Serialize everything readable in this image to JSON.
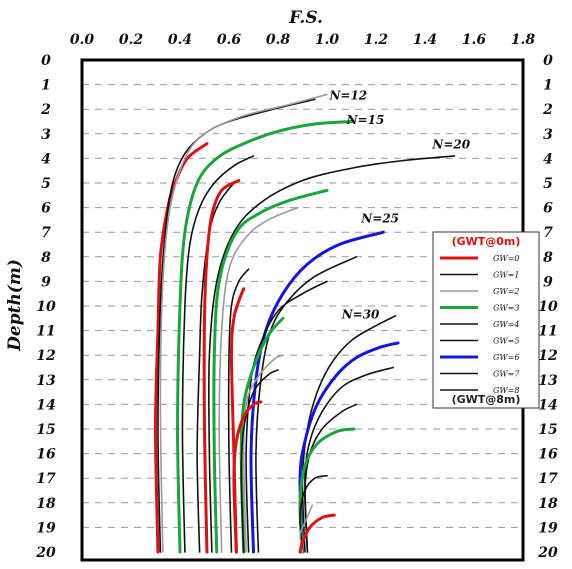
{
  "chart_data": {
    "type": "line",
    "title": "F.S.",
    "ylabel": "Depth(m)",
    "xlim": [
      0,
      1.8
    ],
    "ylim": [
      20,
      0
    ],
    "x_ticks": [
      "0.0",
      "0.2",
      "0.4",
      "0.6",
      "0.8",
      "1.0",
      "1.2",
      "1.4",
      "1.6",
      "1.8"
    ],
    "y_ticks": [
      "0",
      "1",
      "2",
      "3",
      "4",
      "5",
      "6",
      "7",
      "8",
      "9",
      "10",
      "11",
      "12",
      "13",
      "14",
      "15",
      "16",
      "17",
      "18",
      "19",
      "20"
    ],
    "grid": "horizontal dashed",
    "legend": {
      "placement": "right",
      "top_note": "(GWT@0m)",
      "bottom_note": "(GWT@8m)",
      "entries": [
        {
          "label": "GW=0",
          "color": "#e01010"
        },
        {
          "label": "GW=1",
          "color": "#111111"
        },
        {
          "label": "GW=2",
          "color": "#9a9a9a"
        },
        {
          "label": "GW=3",
          "color": "#1aa53a"
        },
        {
          "label": "GW=4",
          "color": "#111111"
        },
        {
          "label": "GW=5",
          "color": "#111111"
        },
        {
          "label": "GW=6",
          "color": "#1515e0"
        },
        {
          "label": "GW=7",
          "color": "#111111"
        },
        {
          "label": "GW=8",
          "color": "#111111"
        }
      ]
    },
    "groups": [
      {
        "label": "N=12",
        "label_at": [
          1.01,
          1.6
        ],
        "series": [
          {
            "gw": "GW=0",
            "color": "#e01010",
            "points": [
              [
                0.31,
                20
              ],
              [
                0.3,
                15
              ],
              [
                0.31,
                11
              ],
              [
                0.32,
                8
              ],
              [
                0.35,
                6
              ],
              [
                0.38,
                5
              ],
              [
                0.43,
                4
              ],
              [
                0.51,
                3.4
              ]
            ]
          },
          {
            "gw": "GW=1",
            "color": "#111111",
            "points": [
              [
                0.32,
                20
              ],
              [
                0.31,
                15
              ],
              [
                0.32,
                10
              ],
              [
                0.34,
                7
              ],
              [
                0.37,
                5
              ],
              [
                0.42,
                3.8
              ],
              [
                0.5,
                3
              ],
              [
                0.6,
                2.5
              ],
              [
                0.78,
                2.0
              ],
              [
                0.95,
                1.6
              ]
            ]
          },
          {
            "gw": "GW=2",
            "color": "#9a9a9a",
            "points": [
              [
                0.33,
                20
              ],
              [
                0.32,
                14
              ],
              [
                0.33,
                9
              ],
              [
                0.36,
                6
              ],
              [
                0.42,
                4
              ],
              [
                0.5,
                3
              ],
              [
                0.65,
                2.3
              ],
              [
                0.85,
                1.8
              ],
              [
                1.0,
                1.4
              ]
            ]
          }
        ]
      },
      {
        "label": "N=15",
        "label_at": [
          1.08,
          2.6
        ],
        "series": [
          {
            "gw": "GW=3",
            "color": "#1aa53a",
            "points": [
              [
                0.4,
                20
              ],
              [
                0.39,
                15
              ],
              [
                0.4,
                10
              ],
              [
                0.42,
                7
              ],
              [
                0.47,
                5
              ],
              [
                0.55,
                4
              ],
              [
                0.66,
                3.4
              ],
              [
                0.8,
                2.9
              ],
              [
                0.95,
                2.6
              ],
              [
                1.1,
                2.5
              ]
            ]
          },
          {
            "gw": "GW=4",
            "color": "#111111",
            "points": [
              [
                0.42,
                20
              ],
              [
                0.41,
                15
              ],
              [
                0.42,
                10
              ],
              [
                0.44,
                7.5
              ],
              [
                0.48,
                6
              ],
              [
                0.54,
                5
              ],
              [
                0.62,
                4.3
              ],
              [
                0.7,
                3.9
              ]
            ]
          },
          {
            "gw": "GW=5",
            "color": "#111111",
            "points": [
              [
                0.48,
                20
              ],
              [
                0.47,
                16
              ],
              [
                0.48,
                12
              ],
              [
                0.49,
                9.5
              ],
              [
                0.52,
                7
              ],
              [
                0.56,
                5.8
              ],
              [
                0.62,
                5.0
              ]
            ]
          },
          {
            "gw": "GW=0",
            "color": "#e01010",
            "points": [
              [
                0.51,
                20
              ],
              [
                0.5,
                15
              ],
              [
                0.5,
                10.5
              ],
              [
                0.51,
                8
              ],
              [
                0.53,
                6.3
              ],
              [
                0.57,
                5.3
              ],
              [
                0.64,
                4.9
              ]
            ]
          }
        ]
      },
      {
        "label": "N=20",
        "label_at": [
          1.43,
          3.6
        ],
        "series": [
          {
            "gw": "GW=1",
            "color": "#111111",
            "points": [
              [
                0.53,
                20
              ],
              [
                0.52,
                16
              ],
              [
                0.52,
                12
              ],
              [
                0.55,
                9
              ],
              [
                0.62,
                7
              ],
              [
                0.73,
                5.8
              ],
              [
                0.9,
                4.9
              ],
              [
                1.1,
                4.4
              ],
              [
                1.3,
                4.1
              ],
              [
                1.52,
                3.9
              ]
            ]
          },
          {
            "gw": "GW=3",
            "color": "#1aa53a",
            "points": [
              [
                0.55,
                20
              ],
              [
                0.54,
                16
              ],
              [
                0.54,
                12
              ],
              [
                0.56,
                9
              ],
              [
                0.63,
                7
              ],
              [
                0.73,
                6.2
              ],
              [
                0.85,
                5.7
              ],
              [
                1.0,
                5.3
              ]
            ]
          },
          {
            "gw": "GW=2",
            "color": "#9a9a9a",
            "points": [
              [
                0.57,
                20
              ],
              [
                0.56,
                15
              ],
              [
                0.57,
                11
              ],
              [
                0.6,
                8.5
              ],
              [
                0.67,
                7.2
              ],
              [
                0.76,
                6.5
              ],
              [
                0.88,
                6.0
              ]
            ]
          },
          {
            "gw": "GW=4",
            "color": "#111111",
            "points": [
              [
                0.61,
                20
              ],
              [
                0.6,
                16
              ],
              [
                0.6,
                12
              ],
              [
                0.61,
                10
              ],
              [
                0.64,
                9
              ],
              [
                0.68,
                8.5
              ]
            ]
          },
          {
            "gw": "GW=0",
            "color": "#e01010",
            "points": [
              [
                0.63,
                20
              ],
              [
                0.62,
                16
              ],
              [
                0.61,
                12
              ],
              [
                0.62,
                10.5
              ],
              [
                0.64,
                9.8
              ],
              [
                0.66,
                9.3
              ]
            ]
          }
        ]
      },
      {
        "label": "N=25",
        "label_at": [
          1.14,
          6.6
        ],
        "series": [
          {
            "gw": "GW=6",
            "color": "#1515e0",
            "points": [
              [
                0.7,
                20
              ],
              [
                0.69,
                16
              ],
              [
                0.71,
                13
              ],
              [
                0.75,
                11
              ],
              [
                0.82,
                9.5
              ],
              [
                0.92,
                8.3
              ],
              [
                1.05,
                7.5
              ],
              [
                1.23,
                7.0
              ]
            ]
          },
          {
            "gw": "GW=5",
            "color": "#111111",
            "points": [
              [
                0.72,
                20
              ],
              [
                0.71,
                16
              ],
              [
                0.73,
                13
              ],
              [
                0.77,
                11
              ],
              [
                0.84,
                9.8
              ],
              [
                0.95,
                8.8
              ],
              [
                1.12,
                8.0
              ]
            ]
          },
          {
            "gw": "GW=7",
            "color": "#111111",
            "points": [
              [
                0.68,
                20
              ],
              [
                0.67,
                16
              ],
              [
                0.69,
                13
              ],
              [
                0.73,
                11.5
              ],
              [
                0.8,
                10.2
              ],
              [
                0.9,
                9.5
              ],
              [
                1.0,
                9.0
              ]
            ]
          },
          {
            "gw": "GW=3",
            "color": "#1aa53a",
            "points": [
              [
                0.66,
                20
              ],
              [
                0.65,
                16
              ],
              [
                0.66,
                14
              ],
              [
                0.7,
                12.5
              ],
              [
                0.76,
                11.2
              ],
              [
                0.82,
                10.5
              ]
            ]
          },
          {
            "gw": "GW=2",
            "color": "#9a9a9a",
            "points": [
              [
                0.67,
                20
              ],
              [
                0.66,
                16
              ],
              [
                0.67,
                14
              ],
              [
                0.71,
                13
              ],
              [
                0.78,
                12.2
              ],
              [
                0.82,
                12.0
              ]
            ]
          },
          {
            "gw": "GW=8",
            "color": "#111111",
            "points": [
              [
                0.66,
                20
              ],
              [
                0.65,
                17
              ],
              [
                0.66,
                15
              ],
              [
                0.7,
                13.5
              ],
              [
                0.76,
                12.8
              ],
              [
                0.8,
                12.6
              ]
            ]
          },
          {
            "gw": "GW=0",
            "color": "#e01010",
            "points": [
              [
                0.63,
                20
              ],
              [
                0.62,
                17
              ],
              [
                0.63,
                15.5
              ],
              [
                0.66,
                14.5
              ],
              [
                0.7,
                14.0
              ],
              [
                0.73,
                13.9
              ]
            ]
          }
        ]
      },
      {
        "label": "N=30",
        "label_at": [
          1.06,
          10.5
        ],
        "series": [
          {
            "gw": "GW=1",
            "color": "#111111",
            "points": [
              [
                0.91,
                20
              ],
              [
                0.9,
                17
              ],
              [
                0.92,
                15
              ],
              [
                0.96,
                13.5
              ],
              [
                1.02,
                12.3
              ],
              [
                1.1,
                11.4
              ],
              [
                1.2,
                10.8
              ],
              [
                1.28,
                10.4
              ]
            ]
          },
          {
            "gw": "GW=6",
            "color": "#1515e0",
            "points": [
              [
                0.9,
                20
              ],
              [
                0.89,
                17
              ],
              [
                0.91,
                15.5
              ],
              [
                0.96,
                14
              ],
              [
                1.04,
                12.8
              ],
              [
                1.12,
                12.1
              ],
              [
                1.21,
                11.7
              ],
              [
                1.29,
                11.5
              ]
            ]
          },
          {
            "gw": "GW=7",
            "color": "#111111",
            "points": [
              [
                0.92,
                20
              ],
              [
                0.91,
                17
              ],
              [
                0.93,
                15.5
              ],
              [
                0.98,
                14.3
              ],
              [
                1.06,
                13.3
              ],
              [
                1.16,
                12.8
              ],
              [
                1.27,
                12.5
              ]
            ]
          },
          {
            "gw": "GW=5",
            "color": "#111111",
            "points": [
              [
                0.92,
                20
              ],
              [
                0.91,
                17.5
              ],
              [
                0.93,
                16
              ],
              [
                0.98,
                15
              ],
              [
                1.06,
                14.3
              ],
              [
                1.12,
                14.0
              ]
            ]
          },
          {
            "gw": "GW=3",
            "color": "#1aa53a",
            "points": [
              [
                0.9,
                20
              ],
              [
                0.89,
                18
              ],
              [
                0.91,
                16.5
              ],
              [
                0.96,
                15.6
              ],
              [
                1.04,
                15.1
              ],
              [
                1.11,
                15.0
              ]
            ]
          },
          {
            "gw": "GW=8",
            "color": "#111111",
            "points": [
              [
                0.9,
                20
              ],
              [
                0.89,
                18.5
              ],
              [
                0.91,
                17.5
              ],
              [
                0.95,
                17.0
              ],
              [
                1.0,
                16.9
              ]
            ]
          },
          {
            "gw": "GW=2",
            "color": "#9a9a9a",
            "points": [
              [
                0.9,
                20
              ],
              [
                0.89,
                19.3
              ],
              [
                0.91,
                18.8
              ],
              [
                0.94,
                18.1
              ]
            ]
          },
          {
            "gw": "GW=0",
            "color": "#e01010",
            "points": [
              [
                0.89,
                20
              ],
              [
                0.9,
                19.6
              ],
              [
                0.93,
                19.0
              ],
              [
                0.98,
                18.6
              ],
              [
                1.03,
                18.5
              ]
            ]
          }
        ]
      }
    ]
  }
}
